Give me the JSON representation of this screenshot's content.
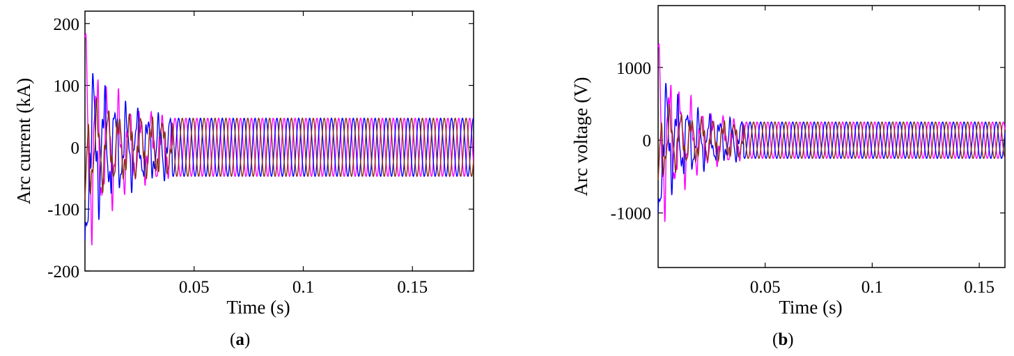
{
  "colors": {
    "magenta": "#ff00ff",
    "blue": "#0000ff",
    "brown": "#8b2e12",
    "axis": "#000000"
  },
  "chart_data": [
    {
      "type": "line",
      "caption": "a",
      "xlabel": "Time (s)",
      "ylabel": "Arc current (kA)",
      "xlim": [
        0,
        0.178
      ],
      "ylim": [
        -200,
        220
      ],
      "xticks": [
        0.05,
        0.1,
        0.15
      ],
      "xtick_labels": [
        "0.05",
        "0.1",
        "0.15"
      ],
      "yticks": [
        200,
        100,
        0,
        -100,
        -200
      ],
      "ytick_labels": [
        "200",
        "100",
        "0",
        "-100",
        "-200"
      ],
      "grid": false,
      "frequency_hz": 200,
      "steady_state_amplitude": 47,
      "steady_state_from": 0.04,
      "series": [
        {
          "color": "#ff00ff",
          "phase_deg": 0,
          "initial_peak": 180
        },
        {
          "color": "#0000ff",
          "phase_deg": 240,
          "initial_peak": -150
        },
        {
          "color": "#8b2e12",
          "phase_deg": 120,
          "initial_peak": -85
        }
      ]
    },
    {
      "type": "line",
      "caption": "b",
      "xlabel": "Time (s)",
      "ylabel": "Arc voltage (V)",
      "xlim": [
        0,
        0.162
      ],
      "ylim": [
        -1750,
        1850
      ],
      "xticks": [
        0.05,
        0.1,
        0.15
      ],
      "xtick_labels": [
        "0.05",
        "0.1",
        "0.15"
      ],
      "yticks": [
        1000,
        0,
        -1000
      ],
      "ytick_labels": [
        "1000",
        "0",
        "-1000"
      ],
      "grid": false,
      "frequency_hz": 200,
      "steady_state_amplitude": 250,
      "steady_state_from": 0.04,
      "series": [
        {
          "color": "#ff00ff",
          "phase_deg": 0,
          "initial_peak": 1300
        },
        {
          "color": "#0000ff",
          "phase_deg": 240,
          "initial_peak": -1000
        },
        {
          "color": "#8b2e12",
          "phase_deg": 120,
          "initial_peak": -550
        }
      ]
    }
  ]
}
